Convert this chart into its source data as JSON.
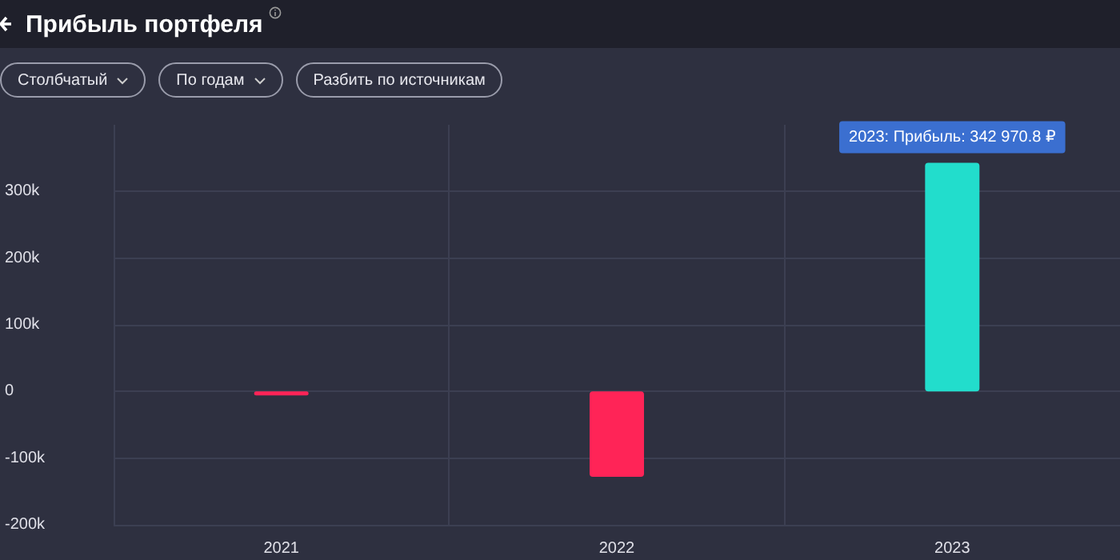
{
  "chart_data": {
    "type": "bar",
    "title": "Прибыль портфеля",
    "categories": [
      "2021",
      "2022",
      "2023"
    ],
    "values": [
      -6000,
      -128000,
      342970.8
    ],
    "colors": [
      "#ff2457",
      "#ff2457",
      "#22ddcc"
    ],
    "ylim": [
      -200000,
      400000
    ],
    "yticks": [
      {
        "value": -200000,
        "label": "-200k"
      },
      {
        "value": -100000,
        "label": "-100k"
      },
      0,
      {
        "value": 100000,
        "label": "100k"
      },
      {
        "value": 200000,
        "label": "200k"
      },
      {
        "value": 300000,
        "label": "300k"
      }
    ],
    "grid": true,
    "annotations": [
      "Столбчатый",
      "По годам",
      "Разбить по источникам",
      {
        "text": "2023: Прибыль: 342 970.8 ₽",
        "x": "2023",
        "y": 342970.8
      }
    ]
  }
}
